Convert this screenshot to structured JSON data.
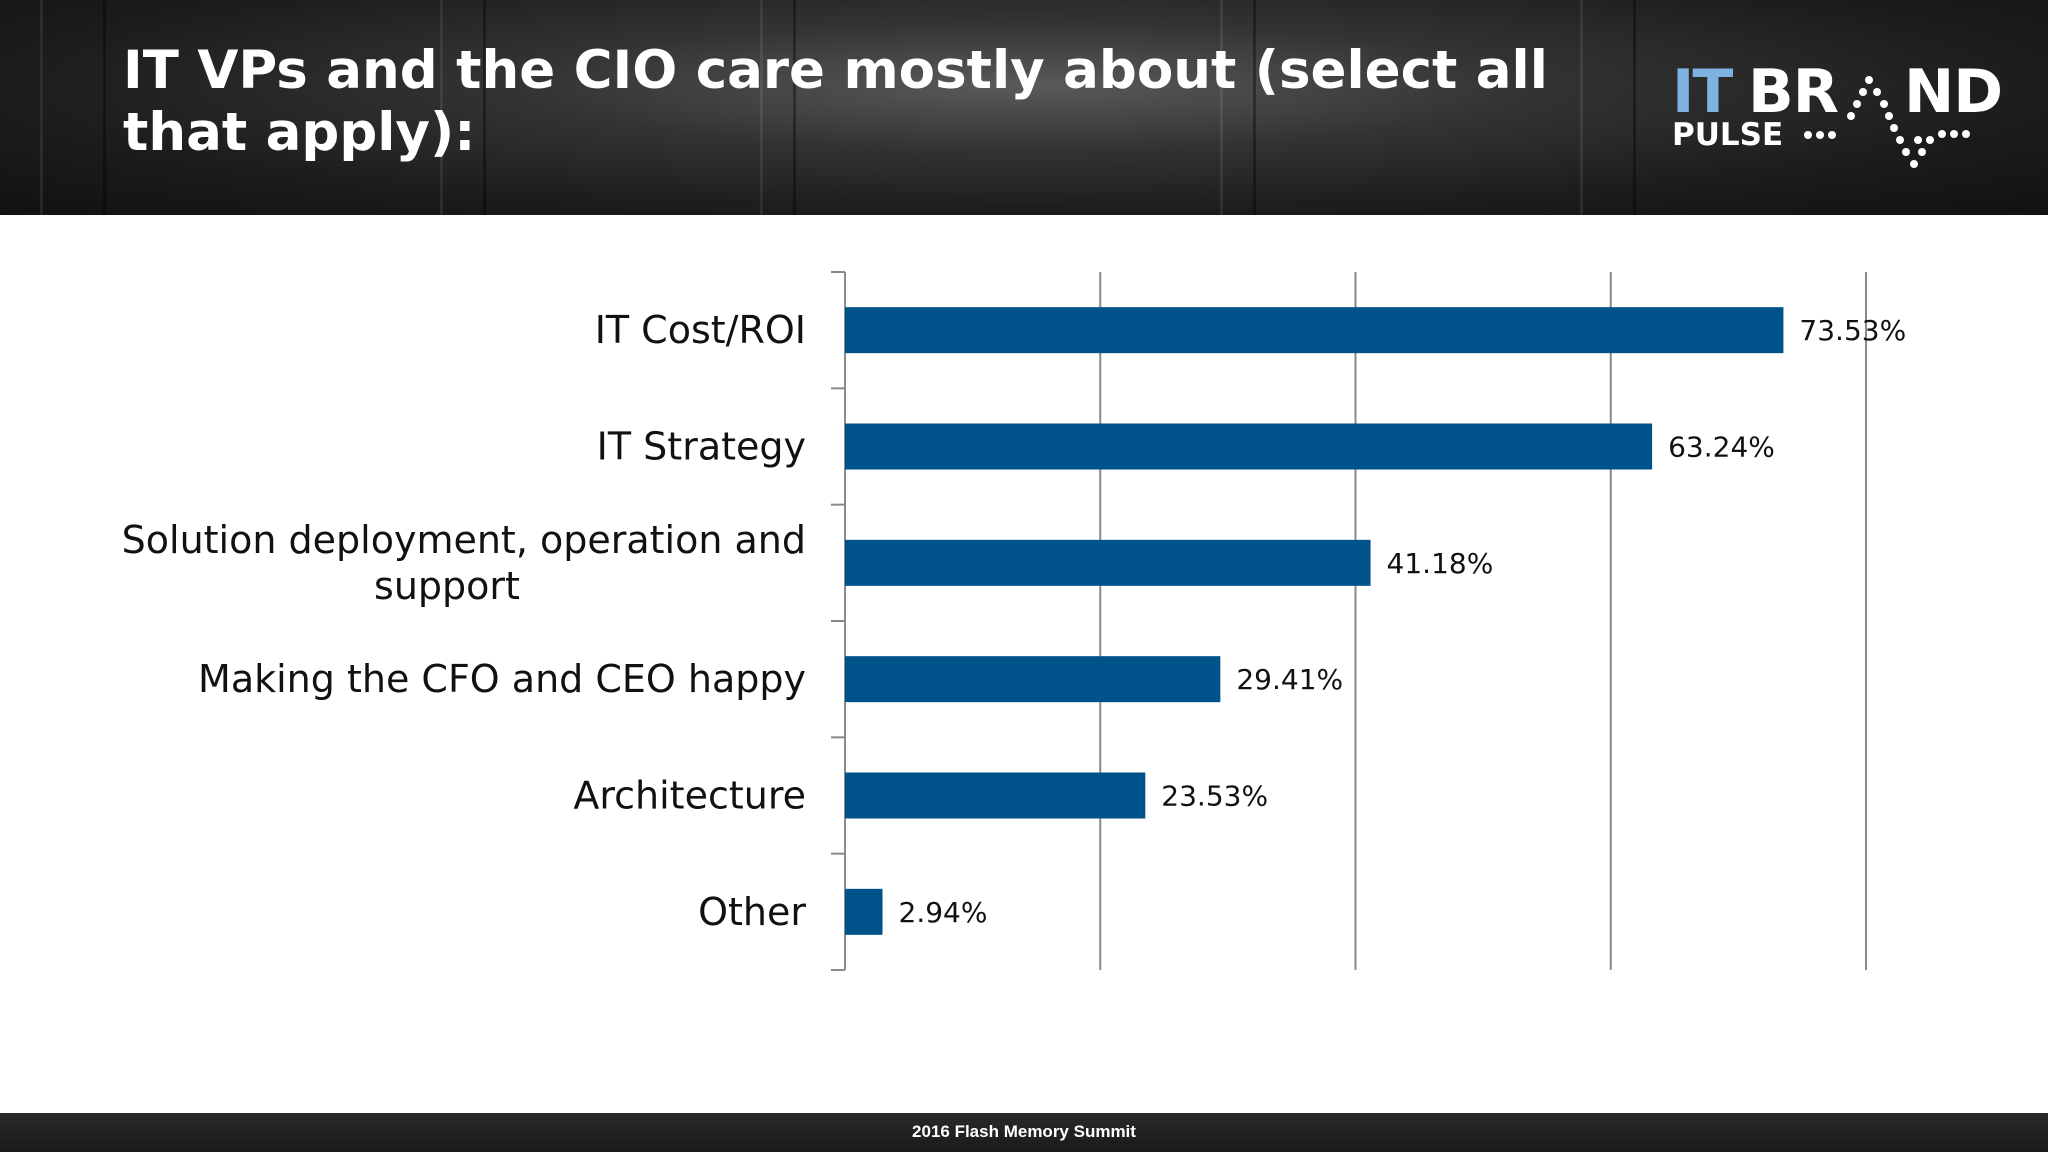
{
  "slide": {
    "title": "IT VPs and the CIO care mostly about (select all that apply):",
    "footer": "2016 Flash Memory Summit"
  },
  "logo": {
    "part_it": "IT",
    "part_br": "BR",
    "part_nd": "ND",
    "part_pulse": "PULSE"
  },
  "colors": {
    "bar": "#00528a",
    "gridline": "#8a8a8a",
    "logo_accent": "#7fb2e0"
  },
  "chart_data": {
    "type": "bar",
    "orientation": "horizontal",
    "categories": [
      "IT Cost/ROI",
      "IT Strategy",
      "Solution deployment, operation and support",
      "Making the CFO and CEO happy",
      "Architecture",
      "Other"
    ],
    "category_lines": [
      [
        "IT Cost/ROI"
      ],
      [
        "IT Strategy"
      ],
      [
        "Solution deployment, operation and",
        "support"
      ],
      [
        "Making the CFO and CEO happy"
      ],
      [
        "Architecture"
      ],
      [
        "Other"
      ]
    ],
    "values": [
      73.53,
      63.24,
      41.18,
      29.41,
      23.53,
      2.94
    ],
    "value_labels": [
      "73.53%",
      "63.24%",
      "41.18%",
      "29.41%",
      "23.53%",
      "2.94%"
    ],
    "xlim": [
      0,
      80
    ],
    "x_gridlines": [
      20,
      40,
      60,
      80
    ],
    "grid": true,
    "legend": "none"
  }
}
